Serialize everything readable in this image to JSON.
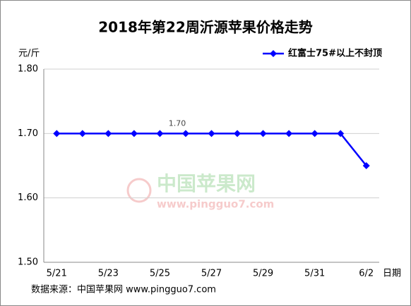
{
  "chart_data": {
    "type": "line",
    "title": "2018年第22周沂源苹果价格走势",
    "y_axis_label": "元/斤",
    "x_axis_label": "日期",
    "source": "数据来源：中国苹果网 www.pingguo7.com",
    "watermark": {
      "name": "中国苹果网",
      "url": "www.pingguo7.com"
    },
    "categories": [
      "5/21",
      null,
      "5/23",
      null,
      "5/25",
      null,
      "5/27",
      null,
      "5/29",
      null,
      "5/31",
      null,
      "6/2"
    ],
    "series": [
      {
        "name": "红富士75#以上不封顶",
        "color": "#0000ff",
        "values": [
          1.7,
          1.7,
          1.7,
          1.7,
          1.7,
          1.7,
          1.7,
          1.7,
          1.7,
          1.7,
          1.7,
          1.7,
          1.65
        ],
        "value_labels": [
          null,
          null,
          null,
          null,
          null,
          "1.70",
          null,
          null,
          null,
          null,
          null,
          null,
          null
        ]
      }
    ],
    "ylim": [
      1.5,
      1.8
    ],
    "yticks": [
      {
        "value": 1.5,
        "label": "1.50"
      },
      {
        "value": 1.6,
        "label": "1.60"
      },
      {
        "value": 1.7,
        "label": "1.70"
      },
      {
        "value": 1.8,
        "label": "1.80"
      }
    ],
    "grid": true,
    "legend": "top-right"
  }
}
